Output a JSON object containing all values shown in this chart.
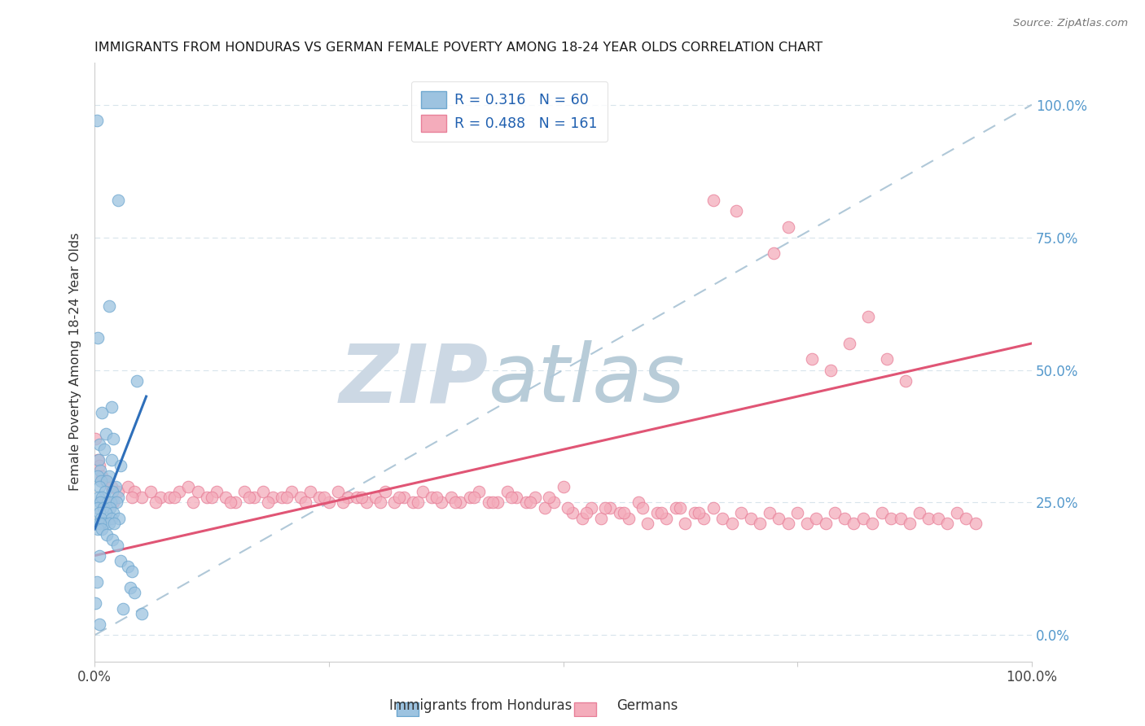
{
  "title": "IMMIGRANTS FROM HONDURAS VS GERMAN FEMALE POVERTY AMONG 18-24 YEAR OLDS CORRELATION CHART",
  "source": "Source: ZipAtlas.com",
  "ylabel": "Female Poverty Among 18-24 Year Olds",
  "ytick_labels": [
    "0.0%",
    "25.0%",
    "50.0%",
    "75.0%",
    "100.0%"
  ],
  "ytick_values": [
    0,
    25,
    50,
    75,
    100
  ],
  "xlim": [
    0,
    100
  ],
  "ylim": [
    -5,
    108
  ],
  "watermark_zip": "ZIP",
  "watermark_atlas": "atlas",
  "watermark_color_zip": "#ccd8e4",
  "watermark_color_atlas": "#b8ccd8",
  "blue_color": "#9dc3e0",
  "blue_edge": "#6fa8d0",
  "pink_color": "#f4acbb",
  "pink_edge": "#e88099",
  "blue_line_color": "#2e6fba",
  "pink_line_color": "#e05575",
  "dashed_line_color": "#b0c8d8",
  "grid_color": "#d8e4ec",
  "right_label_color": "#5599cc",
  "blue_trend": [
    0.0,
    20.0,
    5.5,
    45.0
  ],
  "pink_trend": [
    0.0,
    15.0,
    100.0,
    55.0
  ],
  "dashed_line": [
    0.0,
    0.0,
    100.0,
    100.0
  ],
  "blue_points": [
    [
      0.2,
      97
    ],
    [
      2.5,
      82
    ],
    [
      1.5,
      62
    ],
    [
      0.3,
      56
    ],
    [
      4.5,
      48
    ],
    [
      1.8,
      43
    ],
    [
      0.8,
      42
    ],
    [
      1.2,
      38
    ],
    [
      2.0,
      37
    ],
    [
      0.5,
      36
    ],
    [
      1.0,
      35
    ],
    [
      0.4,
      33
    ],
    [
      1.8,
      33
    ],
    [
      2.8,
      32
    ],
    [
      0.6,
      31
    ],
    [
      1.5,
      30
    ],
    [
      0.3,
      30
    ],
    [
      0.7,
      29
    ],
    [
      1.3,
      29
    ],
    [
      2.2,
      28
    ],
    [
      0.5,
      28
    ],
    [
      1.1,
      27
    ],
    [
      1.9,
      27
    ],
    [
      0.4,
      26
    ],
    [
      0.8,
      26
    ],
    [
      2.5,
      26
    ],
    [
      1.4,
      25
    ],
    [
      0.6,
      25
    ],
    [
      1.7,
      25
    ],
    [
      2.3,
      25
    ],
    [
      0.3,
      24
    ],
    [
      0.9,
      24
    ],
    [
      1.6,
      24
    ],
    [
      2.0,
      23
    ],
    [
      0.5,
      23
    ],
    [
      1.2,
      23
    ],
    [
      0.7,
      22
    ],
    [
      1.8,
      22
    ],
    [
      2.6,
      22
    ],
    [
      0.4,
      21
    ],
    [
      1.0,
      21
    ],
    [
      1.5,
      21
    ],
    [
      0.6,
      21
    ],
    [
      2.1,
      21
    ],
    [
      0.3,
      20
    ],
    [
      0.8,
      20
    ],
    [
      1.3,
      19
    ],
    [
      1.9,
      18
    ],
    [
      2.4,
      17
    ],
    [
      0.5,
      15
    ],
    [
      2.8,
      14
    ],
    [
      3.5,
      13
    ],
    [
      4.0,
      12
    ],
    [
      0.2,
      10
    ],
    [
      3.8,
      9
    ],
    [
      4.2,
      8
    ],
    [
      0.1,
      6
    ],
    [
      3.0,
      5
    ],
    [
      5.0,
      4
    ],
    [
      0.5,
      2
    ]
  ],
  "pink_points": [
    [
      0.3,
      33
    ],
    [
      0.5,
      32
    ],
    [
      0.8,
      30
    ],
    [
      1.2,
      29
    ],
    [
      1.8,
      28
    ],
    [
      2.5,
      27
    ],
    [
      3.5,
      28
    ],
    [
      4.2,
      27
    ],
    [
      5.0,
      26
    ],
    [
      6.0,
      27
    ],
    [
      7.0,
      26
    ],
    [
      8.0,
      26
    ],
    [
      9.0,
      27
    ],
    [
      10.0,
      28
    ],
    [
      11.0,
      27
    ],
    [
      12.0,
      26
    ],
    [
      13.0,
      27
    ],
    [
      14.0,
      26
    ],
    [
      15.0,
      25
    ],
    [
      16.0,
      27
    ],
    [
      17.0,
      26
    ],
    [
      18.0,
      27
    ],
    [
      19.0,
      26
    ],
    [
      20.0,
      26
    ],
    [
      21.0,
      27
    ],
    [
      22.0,
      26
    ],
    [
      23.0,
      27
    ],
    [
      24.0,
      26
    ],
    [
      25.0,
      25
    ],
    [
      26.0,
      27
    ],
    [
      27.0,
      26
    ],
    [
      28.0,
      26
    ],
    [
      29.0,
      25
    ],
    [
      30.0,
      26
    ],
    [
      31.0,
      27
    ],
    [
      32.0,
      25
    ],
    [
      33.0,
      26
    ],
    [
      34.0,
      25
    ],
    [
      35.0,
      27
    ],
    [
      36.0,
      26
    ],
    [
      37.0,
      25
    ],
    [
      38.0,
      26
    ],
    [
      39.0,
      25
    ],
    [
      40.0,
      26
    ],
    [
      41.0,
      27
    ],
    [
      42.0,
      25
    ],
    [
      43.0,
      25
    ],
    [
      44.0,
      27
    ],
    [
      45.0,
      26
    ],
    [
      46.0,
      25
    ],
    [
      47.0,
      26
    ],
    [
      48.0,
      24
    ],
    [
      49.0,
      25
    ],
    [
      50.0,
      28
    ],
    [
      51.0,
      23
    ],
    [
      52.0,
      22
    ],
    [
      53.0,
      24
    ],
    [
      54.0,
      22
    ],
    [
      55.0,
      24
    ],
    [
      56.0,
      23
    ],
    [
      57.0,
      22
    ],
    [
      58.0,
      25
    ],
    [
      59.0,
      21
    ],
    [
      60.0,
      23
    ],
    [
      61.0,
      22
    ],
    [
      62.0,
      24
    ],
    [
      63.0,
      21
    ],
    [
      64.0,
      23
    ],
    [
      65.0,
      22
    ],
    [
      66.0,
      24
    ],
    [
      67.0,
      22
    ],
    [
      68.0,
      21
    ],
    [
      69.0,
      23
    ],
    [
      70.0,
      22
    ],
    [
      71.0,
      21
    ],
    [
      72.0,
      23
    ],
    [
      73.0,
      22
    ],
    [
      74.0,
      21
    ],
    [
      75.0,
      23
    ],
    [
      76.0,
      21
    ],
    [
      77.0,
      22
    ],
    [
      78.0,
      21
    ],
    [
      79.0,
      23
    ],
    [
      80.0,
      22
    ],
    [
      81.0,
      21
    ],
    [
      82.0,
      22
    ],
    [
      83.0,
      21
    ],
    [
      84.0,
      23
    ],
    [
      85.0,
      22
    ],
    [
      86.0,
      22
    ],
    [
      87.0,
      21
    ],
    [
      88.0,
      23
    ],
    [
      89.0,
      22
    ],
    [
      90.0,
      22
    ],
    [
      91.0,
      21
    ],
    [
      92.0,
      23
    ],
    [
      93.0,
      22
    ],
    [
      94.0,
      21
    ],
    [
      2.0,
      25
    ],
    [
      4.0,
      26
    ],
    [
      6.5,
      25
    ],
    [
      8.5,
      26
    ],
    [
      10.5,
      25
    ],
    [
      12.5,
      26
    ],
    [
      14.5,
      25
    ],
    [
      16.5,
      26
    ],
    [
      18.5,
      25
    ],
    [
      20.5,
      26
    ],
    [
      22.5,
      25
    ],
    [
      24.5,
      26
    ],
    [
      26.5,
      25
    ],
    [
      28.5,
      26
    ],
    [
      30.5,
      25
    ],
    [
      32.5,
      26
    ],
    [
      34.5,
      25
    ],
    [
      36.5,
      26
    ],
    [
      38.5,
      25
    ],
    [
      40.5,
      26
    ],
    [
      42.5,
      25
    ],
    [
      44.5,
      26
    ],
    [
      46.5,
      25
    ],
    [
      48.5,
      26
    ],
    [
      50.5,
      24
    ],
    [
      52.5,
      23
    ],
    [
      54.5,
      24
    ],
    [
      56.5,
      23
    ],
    [
      58.5,
      24
    ],
    [
      60.5,
      23
    ],
    [
      62.5,
      24
    ],
    [
      64.5,
      23
    ],
    [
      68.5,
      80
    ],
    [
      72.5,
      72
    ],
    [
      76.5,
      52
    ],
    [
      78.5,
      50
    ],
    [
      80.5,
      55
    ],
    [
      82.5,
      60
    ],
    [
      84.5,
      52
    ],
    [
      86.5,
      48
    ],
    [
      66.0,
      82
    ],
    [
      74.0,
      77
    ],
    [
      0.1,
      37
    ],
    [
      1.0,
      25
    ]
  ]
}
